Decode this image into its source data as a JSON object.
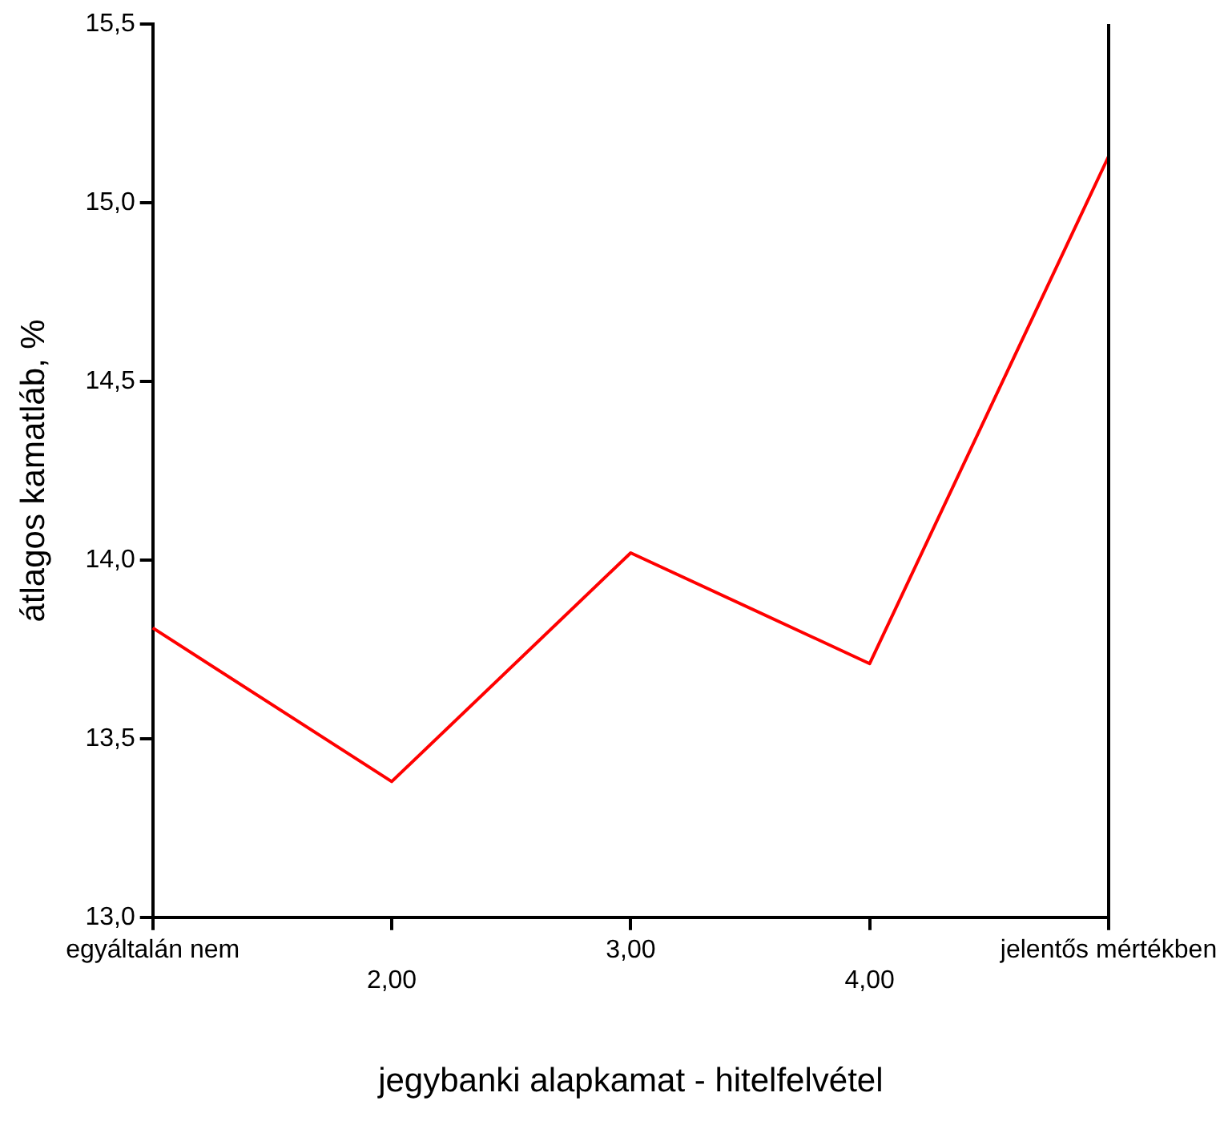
{
  "chart_data": {
    "type": "line",
    "xlabel": "jegybanki alapkamat - hitelfelvétel",
    "ylabel": "átlagos kamatláb, %",
    "categories": [
      "egyáltalán nem",
      "2,00",
      "3,00",
      "4,00",
      "jelentős mértékben"
    ],
    "series": [
      {
        "color": "#ff0000",
        "values": [
          13.81,
          13.38,
          14.02,
          13.71,
          15.13
        ]
      }
    ],
    "ylim": [
      13.0,
      15.5
    ],
    "yticks": [
      {
        "value": 13.0,
        "label": "13,0"
      },
      {
        "value": 13.5,
        "label": "13,5"
      },
      {
        "value": 14.0,
        "label": "14,0"
      },
      {
        "value": 14.5,
        "label": "14,5"
      },
      {
        "value": 15.0,
        "label": "15,0"
      },
      {
        "value": 15.5,
        "label": "15,5"
      }
    ],
    "grid": false,
    "legend": false,
    "marker": "none",
    "line_style": "solid"
  }
}
